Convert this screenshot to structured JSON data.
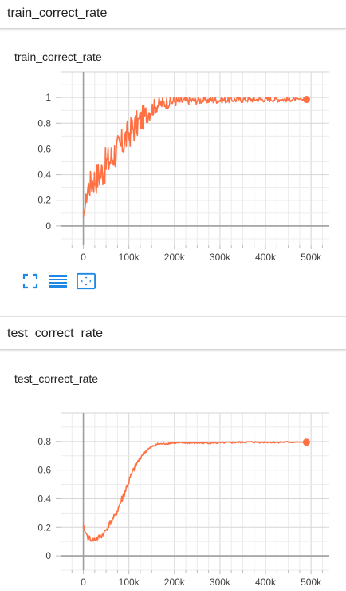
{
  "sections": [
    {
      "header": "train_correct_rate",
      "card_title": "train_correct_rate"
    },
    {
      "header": "test_correct_rate",
      "card_title": "test_correct_rate"
    }
  ],
  "icons": [
    "fit-domain-icon",
    "toggle-log-scale-icon",
    "expand-chart-icon"
  ],
  "colors": {
    "series": "#ff7043",
    "grid": "#dddddd",
    "axis": "#9e9e9e"
  },
  "chart_data": [
    {
      "type": "line",
      "title": "train_correct_rate",
      "xlabel": "",
      "ylabel": "",
      "x_ticks": [
        "0",
        "100k",
        "200k",
        "300k",
        "400k",
        "500k"
      ],
      "y_ticks": [
        "0",
        "0.2",
        "0.4",
        "0.6",
        "0.8",
        "1"
      ],
      "xlim": [
        -50000,
        540000
      ],
      "ylim": [
        -0.15,
        1.2
      ],
      "grid": true,
      "series": [
        {
          "x": [
            0,
            10000,
            20000,
            30000,
            40000,
            50000,
            60000,
            70000,
            80000,
            90000,
            100000,
            110000,
            120000,
            130000,
            140000,
            150000,
            160000,
            180000,
            200000,
            230000,
            260000,
            300000,
            350000,
            400000,
            450000,
            490000
          ],
          "values": [
            0.07,
            0.3,
            0.35,
            0.38,
            0.42,
            0.48,
            0.52,
            0.58,
            0.6,
            0.67,
            0.72,
            0.76,
            0.8,
            0.84,
            0.88,
            0.91,
            0.94,
            0.96,
            0.97,
            0.975,
            0.98,
            0.98,
            0.985,
            0.985,
            0.985,
            0.985
          ],
          "noise": [
            0.0,
            0.1,
            0.12,
            0.13,
            0.14,
            0.14,
            0.14,
            0.14,
            0.13,
            0.13,
            0.12,
            0.12,
            0.11,
            0.1,
            0.08,
            0.07,
            0.06,
            0.05,
            0.04,
            0.03,
            0.03,
            0.025,
            0.025,
            0.02,
            0.02,
            0.0
          ]
        }
      ]
    },
    {
      "type": "line",
      "title": "test_correct_rate",
      "xlabel": "",
      "ylabel": "",
      "x_ticks": [
        "0",
        "100k",
        "200k",
        "300k",
        "400k",
        "500k"
      ],
      "y_ticks": [
        "0",
        "0.2",
        "0.4",
        "0.6",
        "0.8"
      ],
      "xlim": [
        -50000,
        540000
      ],
      "ylim": [
        -0.1,
        1.0
      ],
      "grid": true,
      "series": [
        {
          "x": [
            0,
            5000,
            10000,
            20000,
            30000,
            40000,
            50000,
            60000,
            70000,
            80000,
            90000,
            100000,
            110000,
            120000,
            130000,
            140000,
            150000,
            160000,
            180000,
            200000,
            250000,
            300000,
            350000,
            400000,
            450000,
            490000
          ],
          "values": [
            0.22,
            0.16,
            0.13,
            0.11,
            0.12,
            0.14,
            0.18,
            0.24,
            0.28,
            0.36,
            0.44,
            0.52,
            0.6,
            0.66,
            0.71,
            0.74,
            0.76,
            0.78,
            0.785,
            0.79,
            0.79,
            0.79,
            0.795,
            0.795,
            0.795,
            0.795
          ],
          "noise": [
            0.0,
            0.02,
            0.02,
            0.02,
            0.02,
            0.02,
            0.02,
            0.02,
            0.02,
            0.03,
            0.03,
            0.03,
            0.02,
            0.015,
            0.01,
            0.01,
            0.008,
            0.008,
            0.006,
            0.006,
            0.006,
            0.006,
            0.006,
            0.006,
            0.006,
            0.0
          ]
        }
      ]
    }
  ]
}
